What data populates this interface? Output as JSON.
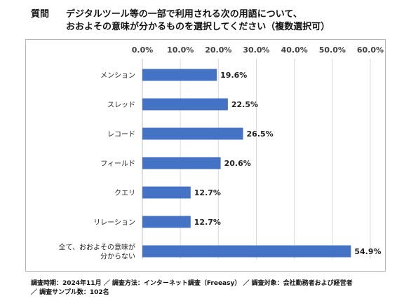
{
  "question": {
    "label": "質問",
    "line1": "デジタルツール等の一部で利用される次の用語について、",
    "line2": "おおよその意味が分かるものを選択してください（複数選択可）"
  },
  "chart_data": {
    "type": "bar",
    "orientation": "horizontal",
    "categories": [
      [
        "メンション"
      ],
      [
        "スレッド"
      ],
      [
        "レコード"
      ],
      [
        "フィールド"
      ],
      [
        "クエリ"
      ],
      [
        "リレーション"
      ],
      [
        "全て、おおよその意味が",
        "分からない"
      ]
    ],
    "values": [
      19.6,
      22.5,
      26.5,
      20.6,
      12.7,
      12.7,
      54.9
    ],
    "value_labels": [
      "19.6%",
      "22.5%",
      "26.5%",
      "20.6%",
      "12.7%",
      "12.7%",
      "54.9%"
    ],
    "xlim": [
      0,
      60
    ],
    "x_ticks": [
      0,
      10,
      20,
      30,
      40,
      50,
      60
    ],
    "x_tick_labels": [
      "0.0%",
      "10.0%",
      "20.0%",
      "30.0%",
      "40.0%",
      "50.0%",
      "60.0%"
    ],
    "x_axis_position": "top",
    "grid": true,
    "bar_color": "#4472C4",
    "gridline_color": "#d9d9d9"
  },
  "footer": {
    "line1": "調査時期：2024年11月 ／ 調査方法：インターネット調査（Freeasy） ／ 調査対象：会社勤務者および経営者",
    "line2": "／ 調査サンプル数：102名"
  }
}
